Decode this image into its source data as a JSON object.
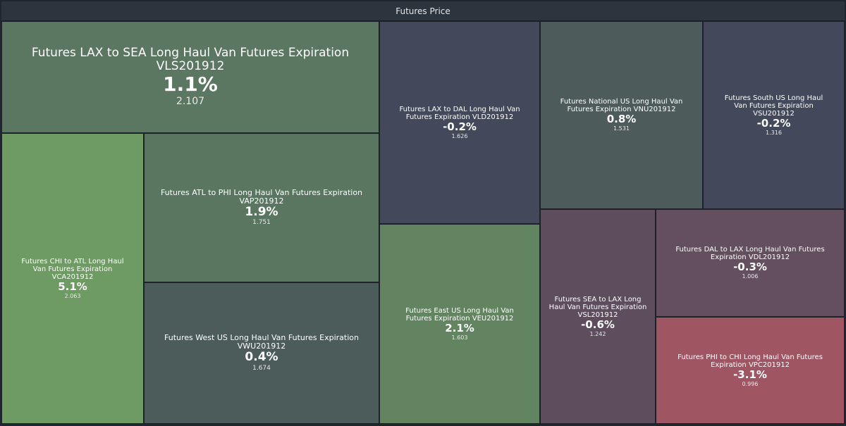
{
  "header": {
    "title": "Futures Price"
  },
  "chart_data": {
    "type": "treemap",
    "title": "Futures Price",
    "items": [
      {
        "label": "Futures LAX to SEA Long Haul Van Futures Expiration VLS201912",
        "change": "1.1%",
        "price": 2.107,
        "color": "#5b7661"
      },
      {
        "label": "Futures LAX to DAL Long Haul Van Futures Expiration VLD201912",
        "change": "-0.2%",
        "price": 1.626,
        "color": "#43495a"
      },
      {
        "label": "Futures National US Long Haul Van Futures Expiration VNU201912",
        "change": "0.8%",
        "price": 1.531,
        "color": "#4d5c5a"
      },
      {
        "label": "Futures South US Long Haul Van Futures Expiration VSU201912",
        "change": "-0.2%",
        "price": 1.316,
        "color": "#43495a"
      },
      {
        "label": "Futures CHI to ATL Long Haul Van Futures Expiration VCA201912",
        "change": "5.1%",
        "price": 2.063,
        "color": "#6e9b63"
      },
      {
        "label": "Futures ATL to PHI Long Haul Van Futures Expiration VAP201912",
        "change": "1.9%",
        "price": 1.751,
        "color": "#5a7660"
      },
      {
        "label": "Futures West US Long Haul Van Futures Expiration VWU201912",
        "change": "0.4%",
        "price": 1.674,
        "color": "#4b5c5b"
      },
      {
        "label": "Futures East US Long Haul Van Futures Expiration VEU201912",
        "change": "2.1%",
        "price": 1.603,
        "color": "#628461"
      },
      {
        "label": "Futures SEA to LAX Long Haul Van Futures Expiration VSL201912",
        "change": "-0.6%",
        "price": 1.242,
        "color": "#5d4d5d"
      },
      {
        "label": "Futures DAL to LAX Long Haul Van Futures Expiration VDL201912",
        "change": "-0.3%",
        "price": 1.006,
        "color": "#634f5d"
      },
      {
        "label": "Futures PHI to CHI Long Haul Van Futures Expiration VPC201912",
        "change": "-3.1%",
        "price": 0.996,
        "color": "#a05662"
      }
    ]
  }
}
